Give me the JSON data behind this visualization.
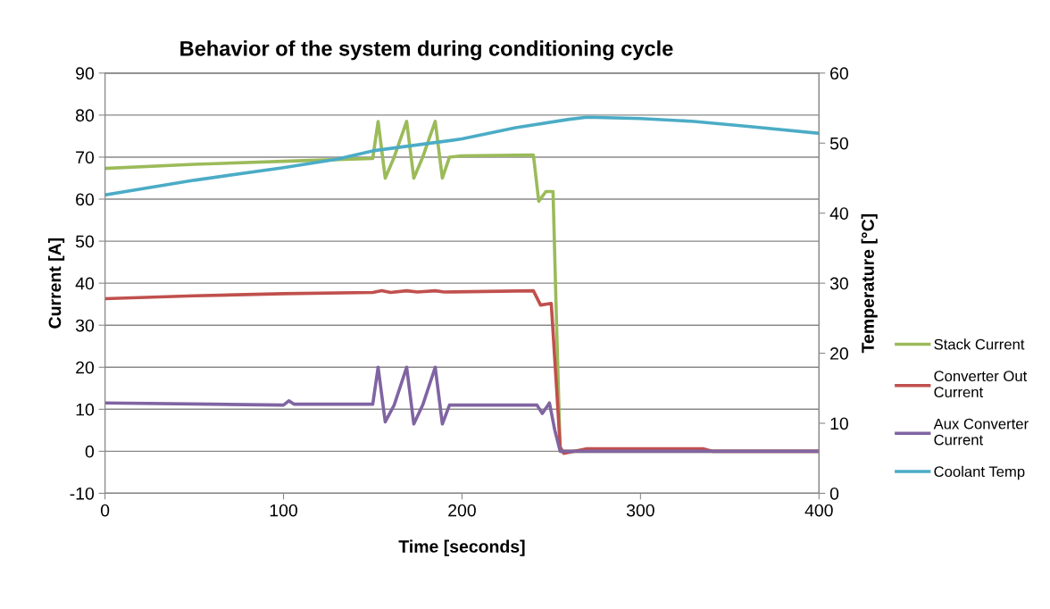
{
  "chart_data": {
    "type": "line",
    "title": "Behavior of the system during conditioning cycle",
    "xlabel": "Time [seconds]",
    "ylabel": "Current [A]",
    "y2label": "Temperature [°C]",
    "xlim": [
      0,
      400
    ],
    "xticks": [
      0,
      100,
      200,
      300,
      400
    ],
    "ylim": [
      -10,
      90
    ],
    "yticks": [
      -10,
      0,
      10,
      20,
      30,
      40,
      50,
      60,
      70,
      80,
      90
    ],
    "y2lim": [
      0,
      60
    ],
    "y2ticks": [
      0,
      10,
      20,
      30,
      40,
      50,
      60
    ],
    "grid": "y",
    "legend": "right",
    "marker": "none",
    "line_style": "solid",
    "series": [
      {
        "name": "Stack Current",
        "color": "#9bbb59",
        "x": [
          0,
          50,
          100,
          150,
          153,
          157,
          162,
          169,
          173,
          178,
          185,
          189,
          193,
          200,
          240,
          243,
          247,
          251,
          253,
          255,
          300,
          400
        ],
        "values": [
          67.3,
          68.3,
          69,
          69.7,
          78.5,
          65,
          70,
          78.5,
          65,
          70,
          78.5,
          65,
          70,
          70.3,
          70.5,
          59.5,
          61.8,
          61.8,
          30,
          0,
          0,
          0
        ]
      },
      {
        "name": "Converter Out\nCurrent",
        "color": "#c0504d",
        "x": [
          0,
          50,
          100,
          150,
          155,
          160,
          169,
          175,
          185,
          190,
          240,
          244,
          250,
          253,
          255,
          257,
          270,
          335,
          340,
          400
        ],
        "values": [
          36.3,
          37,
          37.5,
          37.8,
          38.2,
          37.8,
          38.2,
          37.9,
          38.2,
          37.9,
          38.2,
          34.8,
          35.2,
          15,
          1,
          -0.5,
          0.6,
          0.6,
          0,
          0
        ]
      },
      {
        "name": "Aux Converter\nCurrent",
        "color": "#8064a2",
        "x": [
          0,
          60,
          100,
          103,
          106,
          150,
          153,
          157,
          162,
          169,
          173,
          178,
          185,
          189,
          193,
          242,
          245,
          249,
          252,
          255,
          300,
          400
        ],
        "values": [
          11.5,
          11.2,
          11,
          12,
          11.2,
          11.2,
          20,
          7,
          11,
          20,
          6.5,
          11,
          20,
          6.5,
          11,
          11,
          9,
          11.5,
          5,
          0,
          0,
          0
        ]
      },
      {
        "name": "Coolant Temp",
        "color": "#4bacc6",
        "axis": "y2",
        "x": [
          0,
          50,
          100,
          130,
          150,
          200,
          230,
          260,
          270,
          300,
          330,
          360,
          400
        ],
        "values": [
          42.6,
          44.7,
          46.5,
          47.7,
          48.9,
          50.6,
          52.2,
          53.4,
          53.7,
          53.5,
          53.1,
          52.4,
          51.4
        ]
      }
    ]
  }
}
